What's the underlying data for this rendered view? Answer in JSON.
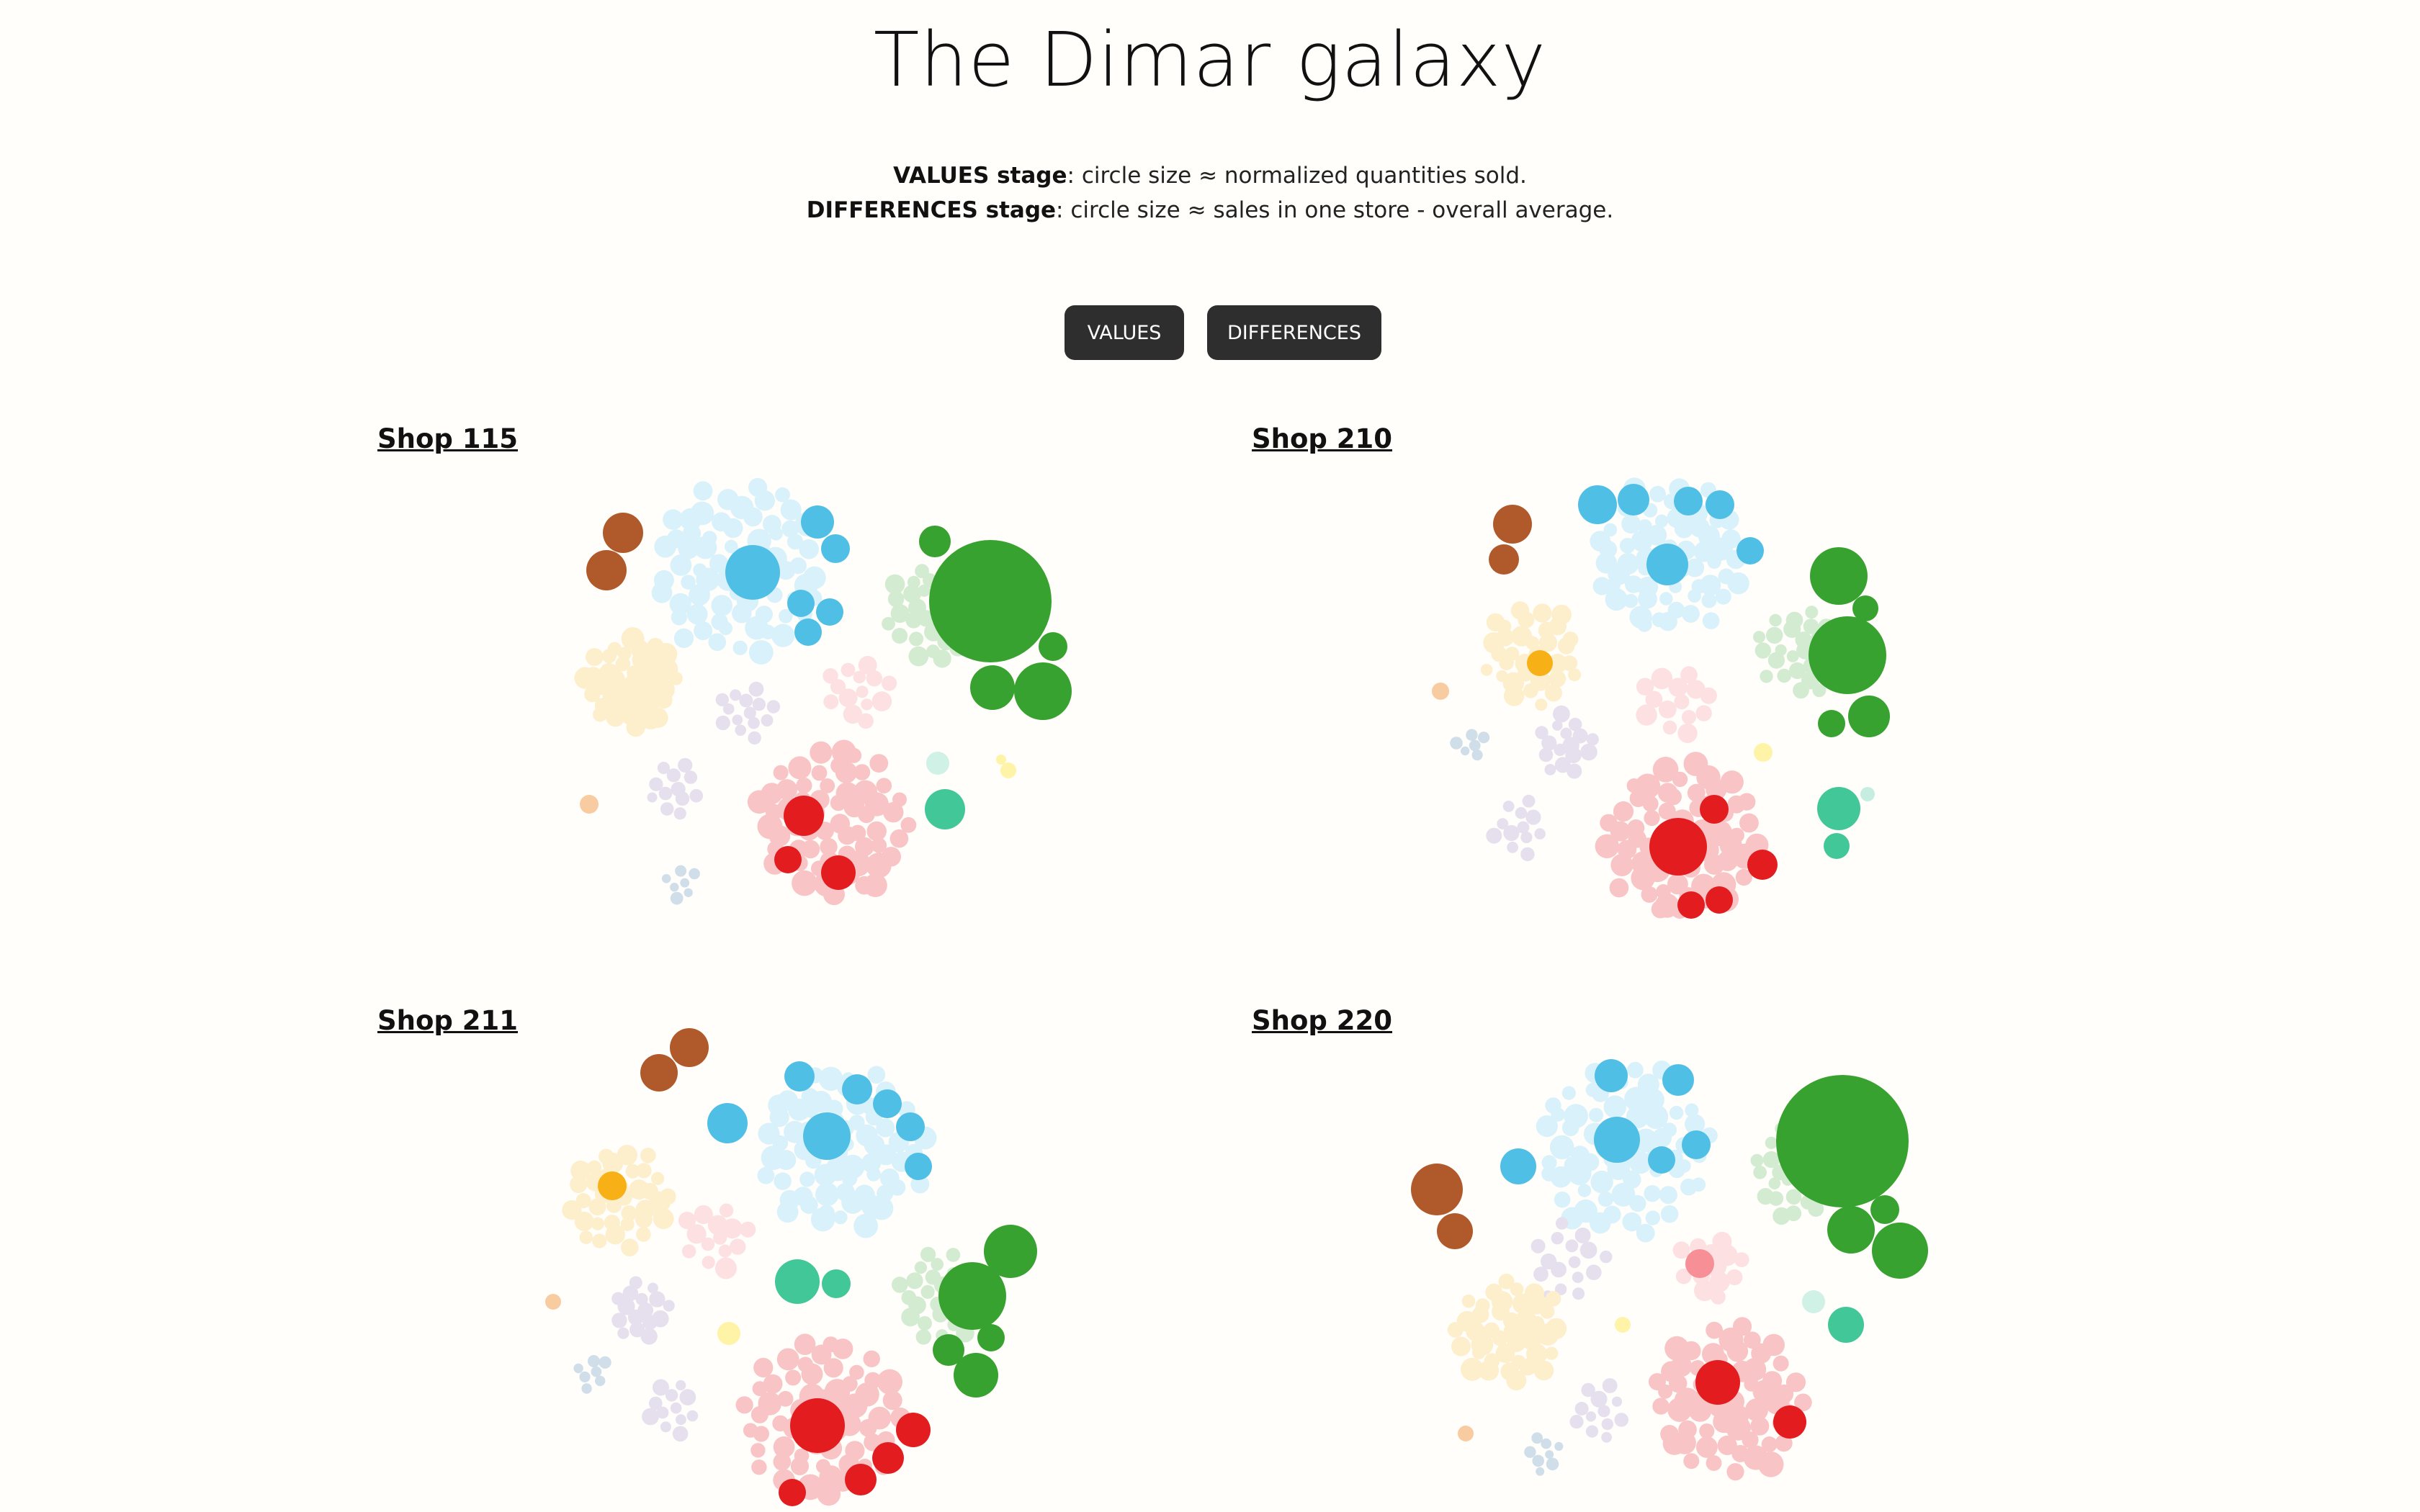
{
  "title": "The Dimar galaxy",
  "legend": {
    "values_term": "VALUES stage",
    "values_desc": ": circle size ≈ normalized quantities sold.",
    "diff_term": "DIFFERENCES stage",
    "diff_desc": ": circle size ≈ sales in one store - overall average."
  },
  "buttons": {
    "values": "VALUES",
    "differences": "DIFFERENCES"
  },
  "colors": {
    "brown": "#b05a2c",
    "blue": "#4fbfe6",
    "green": "#37a22f",
    "orange": "#f7b016",
    "red": "#e31d1f",
    "teal": "#42c799",
    "pink": "#f79096",
    "purple": "#c8b8da",
    "yellow": "#fff3a8",
    "peach": "#f8cba0",
    "slate": "#b0c8dc"
  },
  "shops": [
    {
      "label": "Shop 115"
    },
    {
      "label": "Shop 210"
    },
    {
      "label": "Shop 211"
    },
    {
      "label": "Shop 220"
    }
  ]
}
